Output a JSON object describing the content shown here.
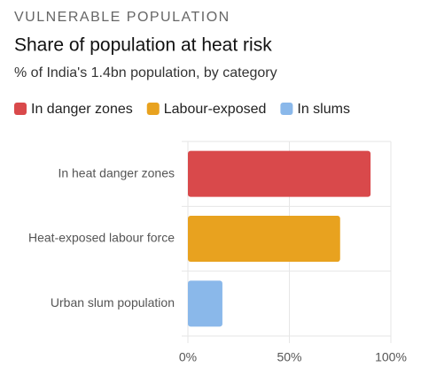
{
  "kicker": "VULNERABLE POPULATION",
  "chart_data": {
    "type": "bar",
    "orientation": "horizontal",
    "title": "Share of population at heat risk",
    "subtitle": "% of India's 1.4bn population, by category",
    "categories": [
      "In heat danger zones",
      "Heat-exposed labour force",
      "Urban slum population"
    ],
    "series": [
      {
        "name": "In danger zones",
        "color": "#d9494b",
        "values": [
          90,
          null,
          null
        ]
      },
      {
        "name": "Labour-exposed",
        "color": "#e8a21f",
        "values": [
          null,
          75,
          null
        ]
      },
      {
        "name": "In slums",
        "color": "#8ab8ea",
        "values": [
          null,
          null,
          17
        ]
      }
    ],
    "xlim": [
      0,
      100
    ],
    "xticks": [
      {
        "value": 0,
        "label": "0%"
      },
      {
        "value": 50,
        "label": "50%"
      },
      {
        "value": 100,
        "label": "100%"
      }
    ],
    "grid": true
  }
}
